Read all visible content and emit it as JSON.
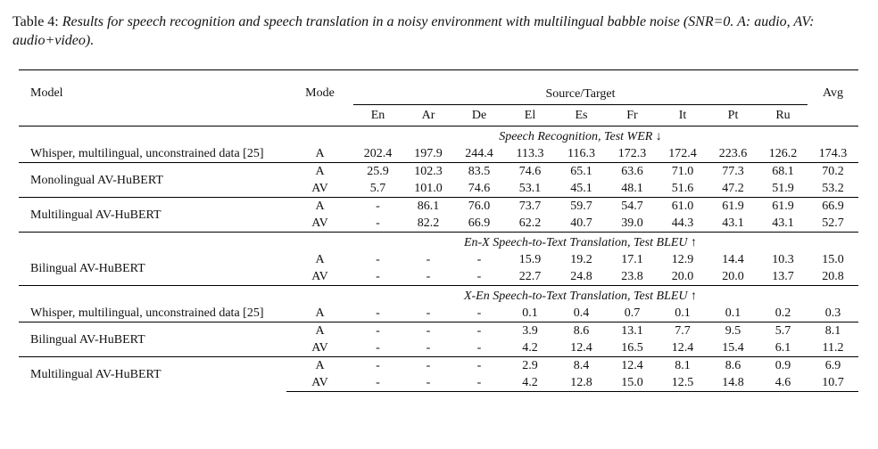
{
  "caption": {
    "label": "Table 4:",
    "text": "Results for speech recognition and speech translation in a noisy environment with multilingual babble noise (SNR=0. A: audio, AV: audio+video)."
  },
  "header": {
    "model": "Model",
    "mode": "Mode",
    "group": "Source/Target",
    "avg": "Avg",
    "langs": [
      "En",
      "Ar",
      "De",
      "El",
      "Es",
      "Fr",
      "It",
      "Pt",
      "Ru"
    ]
  },
  "sections": [
    {
      "title": "Speech Recognition, Test WER ↓",
      "groups": [
        {
          "model": "Whisper, multilingual, unconstrained data  [25]",
          "rows": [
            {
              "mode": "A",
              "values": [
                "202.4",
                "197.9",
                "244.4",
                "113.3",
                "116.3",
                "172.3",
                "172.4",
                "223.6",
                "126.2"
              ],
              "avg": "174.3"
            }
          ]
        },
        {
          "model": "Monolingual AV-HuBERT",
          "rows": [
            {
              "mode": "A",
              "values": [
                "25.9",
                "102.3",
                "83.5",
                "74.6",
                "65.1",
                "63.6",
                "71.0",
                "77.3",
                "68.1"
              ],
              "avg": "70.2"
            },
            {
              "mode": "AV",
              "values": [
                "5.7",
                "101.0",
                "74.6",
                "53.1",
                "45.1",
                "48.1",
                "51.6",
                "47.2",
                "51.9"
              ],
              "avg": "53.2"
            }
          ]
        },
        {
          "model": "Multilingual AV-HuBERT",
          "rows": [
            {
              "mode": "A",
              "values": [
                "-",
                "86.1",
                "76.0",
                "73.7",
                "59.7",
                "54.7",
                "61.0",
                "61.9",
                "61.9"
              ],
              "avg": "66.9"
            },
            {
              "mode": "AV",
              "values": [
                "-",
                "82.2",
                "66.9",
                "62.2",
                "40.7",
                "39.0",
                "44.3",
                "43.1",
                "43.1"
              ],
              "avg": "52.7"
            }
          ]
        }
      ]
    },
    {
      "title": "En-X Speech-to-Text Translation, Test BLEU ↑",
      "groups": [
        {
          "model": "Bilingual AV-HuBERT",
          "rows": [
            {
              "mode": "A",
              "values": [
                "-",
                "-",
                "-",
                "15.9",
                "19.2",
                "17.1",
                "12.9",
                "14.4",
                "10.3"
              ],
              "avg": "15.0"
            },
            {
              "mode": "AV",
              "values": [
                "-",
                "-",
                "-",
                "22.7",
                "24.8",
                "23.8",
                "20.0",
                "20.0",
                "13.7"
              ],
              "avg": "20.8"
            }
          ]
        }
      ]
    },
    {
      "title": "X-En Speech-to-Text Translation, Test BLEU ↑",
      "groups": [
        {
          "model": "Whisper, multilingual, unconstrained data  [25]",
          "rows": [
            {
              "mode": "A",
              "values": [
                "-",
                "-",
                "-",
                "0.1",
                "0.4",
                "0.7",
                "0.1",
                "0.1",
                "0.2"
              ],
              "avg": "0.3"
            }
          ]
        },
        {
          "model": "Bilingual AV-HuBERT",
          "rows": [
            {
              "mode": "A",
              "values": [
                "-",
                "-",
                "-",
                "3.9",
                "8.6",
                "13.1",
                "7.7",
                "9.5",
                "5.7"
              ],
              "avg": "8.1"
            },
            {
              "mode": "AV",
              "values": [
                "-",
                "-",
                "-",
                "4.2",
                "12.4",
                "16.5",
                "12.4",
                "15.4",
                "6.1"
              ],
              "avg": "11.2"
            }
          ]
        },
        {
          "model": "Multilingual AV-HuBERT",
          "rows": [
            {
              "mode": "A",
              "values": [
                "-",
                "-",
                "-",
                "2.9",
                "8.4",
                "12.4",
                "8.1",
                "8.6",
                "0.9"
              ],
              "avg": "6.9"
            },
            {
              "mode": "AV",
              "values": [
                "-",
                "-",
                "-",
                "4.2",
                "12.8",
                "15.0",
                "12.5",
                "14.8",
                "4.6"
              ],
              "avg": "10.7"
            }
          ]
        }
      ]
    }
  ]
}
